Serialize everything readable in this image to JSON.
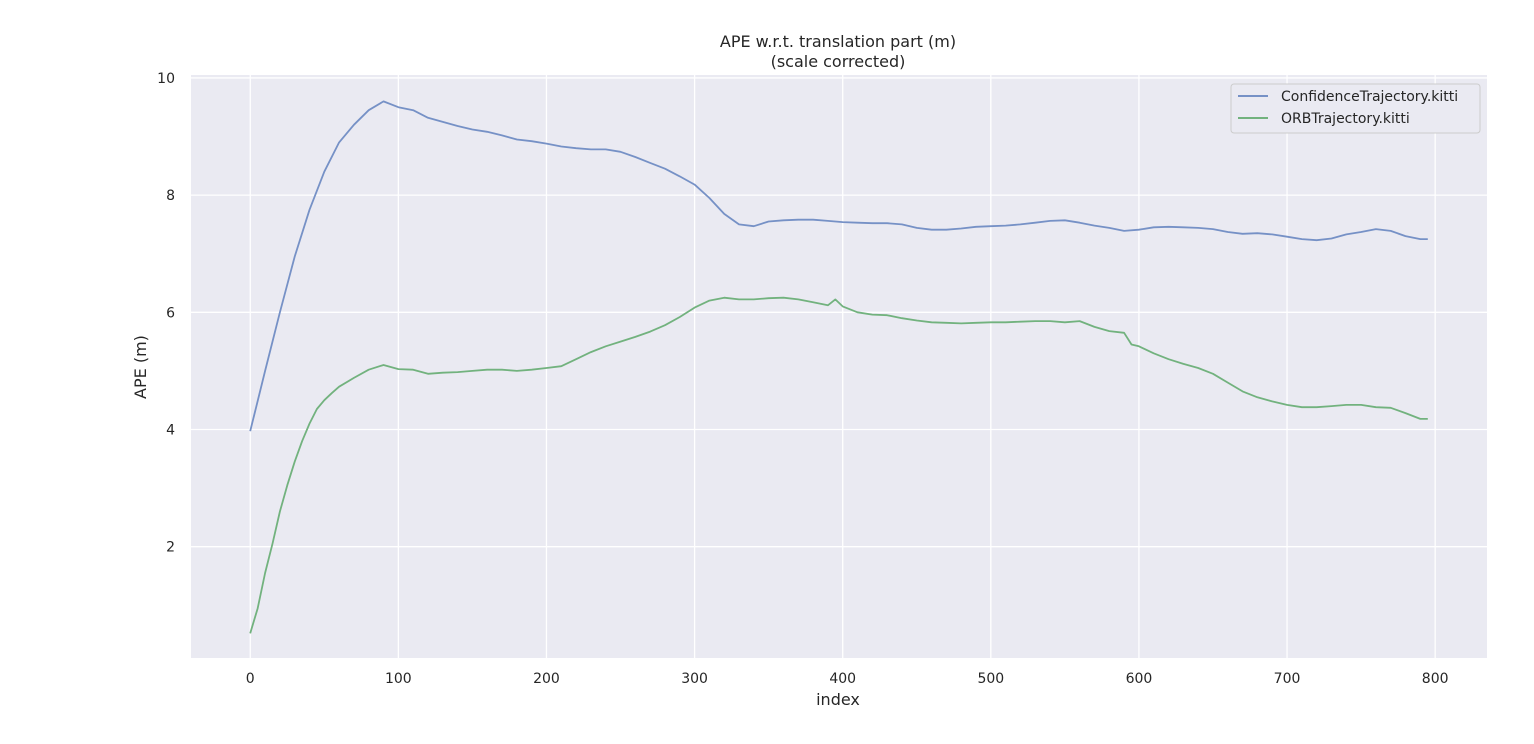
{
  "chart_data": {
    "type": "line",
    "title": "APE w.r.t. translation part (m)",
    "subtitle": "(scale corrected)",
    "xlabel": "index",
    "ylabel": "APE (m)",
    "xlim": [
      -40,
      835
    ],
    "ylim": [
      0.1,
      10.05
    ],
    "xticks": [
      "0",
      "100",
      "200",
      "300",
      "400",
      "500",
      "600",
      "700",
      "800"
    ],
    "yticks": [
      "2",
      "4",
      "6",
      "8",
      "10"
    ],
    "grid": true,
    "legend_position": "top-right",
    "series": [
      {
        "name": "ConfidenceTrajectory.kitti",
        "color": "#7691c6",
        "x": [
          0,
          10,
          20,
          30,
          40,
          50,
          60,
          70,
          80,
          90,
          100,
          110,
          120,
          130,
          140,
          150,
          160,
          170,
          180,
          190,
          200,
          210,
          220,
          230,
          240,
          250,
          260,
          270,
          280,
          290,
          300,
          310,
          320,
          330,
          340,
          350,
          360,
          370,
          380,
          390,
          400,
          410,
          420,
          430,
          440,
          450,
          460,
          470,
          480,
          490,
          500,
          510,
          520,
          530,
          540,
          550,
          560,
          570,
          580,
          590,
          600,
          610,
          620,
          630,
          640,
          650,
          660,
          670,
          680,
          690,
          700,
          710,
          720,
          730,
          740,
          750,
          760,
          770,
          780,
          790,
          795
        ],
        "values": [
          3.97,
          5.0,
          6.0,
          6.95,
          7.75,
          8.4,
          8.9,
          9.2,
          9.45,
          9.6,
          9.5,
          9.45,
          9.32,
          9.25,
          9.18,
          9.12,
          9.08,
          9.02,
          8.95,
          8.92,
          8.88,
          8.83,
          8.8,
          8.78,
          8.78,
          8.74,
          8.65,
          8.55,
          8.45,
          8.32,
          8.18,
          7.95,
          7.68,
          7.5,
          7.47,
          7.55,
          7.57,
          7.58,
          7.58,
          7.56,
          7.54,
          7.53,
          7.52,
          7.52,
          7.5,
          7.44,
          7.41,
          7.41,
          7.43,
          7.46,
          7.47,
          7.48,
          7.5,
          7.53,
          7.56,
          7.57,
          7.53,
          7.48,
          7.44,
          7.39,
          7.41,
          7.45,
          7.46,
          7.45,
          7.44,
          7.42,
          7.37,
          7.34,
          7.35,
          7.33,
          7.29,
          7.25,
          7.23,
          7.26,
          7.33,
          7.37,
          7.42,
          7.39,
          7.3,
          7.25,
          7.25
        ]
      },
      {
        "name": "ORBTrajectory.kitti",
        "color": "#72b27e",
        "x": [
          0,
          5,
          10,
          15,
          20,
          25,
          30,
          35,
          40,
          45,
          50,
          55,
          60,
          70,
          80,
          90,
          100,
          110,
          120,
          130,
          140,
          150,
          160,
          170,
          180,
          190,
          200,
          210,
          220,
          230,
          240,
          250,
          260,
          270,
          280,
          290,
          300,
          310,
          320,
          330,
          340,
          350,
          360,
          370,
          380,
          390,
          395,
          400,
          410,
          420,
          430,
          440,
          450,
          460,
          470,
          480,
          490,
          500,
          510,
          520,
          530,
          540,
          550,
          560,
          570,
          580,
          590,
          595,
          600,
          610,
          620,
          630,
          640,
          650,
          660,
          670,
          680,
          690,
          700,
          710,
          720,
          730,
          740,
          750,
          760,
          770,
          780,
          790,
          795
        ],
        "values": [
          0.52,
          0.95,
          1.55,
          2.05,
          2.6,
          3.05,
          3.45,
          3.8,
          4.1,
          4.35,
          4.5,
          4.62,
          4.73,
          4.88,
          5.02,
          5.1,
          5.03,
          5.02,
          4.95,
          4.97,
          4.98,
          5.0,
          5.02,
          5.02,
          5.0,
          5.02,
          5.05,
          5.08,
          5.2,
          5.32,
          5.42,
          5.5,
          5.58,
          5.67,
          5.78,
          5.92,
          6.08,
          6.2,
          6.25,
          6.22,
          6.22,
          6.24,
          6.25,
          6.22,
          6.17,
          6.12,
          6.22,
          6.1,
          6.0,
          5.96,
          5.95,
          5.9,
          5.86,
          5.83,
          5.82,
          5.81,
          5.82,
          5.83,
          5.83,
          5.84,
          5.85,
          5.85,
          5.83,
          5.85,
          5.75,
          5.68,
          5.65,
          5.45,
          5.42,
          5.3,
          5.2,
          5.12,
          5.05,
          4.95,
          4.8,
          4.65,
          4.55,
          4.48,
          4.42,
          4.38,
          4.38,
          4.4,
          4.42,
          4.42,
          4.38,
          4.37,
          4.28,
          4.18,
          4.18
        ]
      }
    ]
  }
}
